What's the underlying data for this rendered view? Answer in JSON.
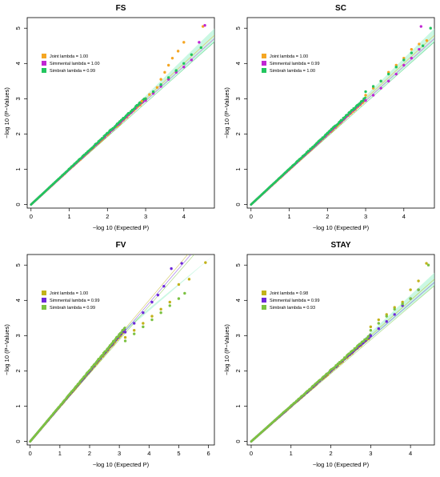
{
  "chart_data": [
    {
      "type": "scatter",
      "title": "FS",
      "xlabel": "−log 10 (Expected P)",
      "ylabel": "−log 10 (P−Values)",
      "xlim": [
        -0.1,
        4.8
      ],
      "ylim": [
        -0.1,
        5.3
      ],
      "xticks": [
        "0",
        "1",
        "2",
        "3",
        "4"
      ],
      "yticks": [
        "0",
        "1",
        "2",
        "3",
        "4",
        "5"
      ],
      "legend_position": "top-left",
      "series": [
        {
          "name": "Joint lambda = 1.00",
          "color": "#f5a623",
          "points": [
            [
              2.9,
              2.93
            ],
            [
              3.0,
              3.0
            ],
            [
              3.1,
              3.12
            ],
            [
              3.2,
              3.18
            ],
            [
              3.3,
              3.32
            ],
            [
              3.4,
              3.55
            ],
            [
              3.5,
              3.75
            ],
            [
              3.6,
              3.95
            ],
            [
              3.7,
              4.15
            ],
            [
              3.85,
              4.35
            ],
            [
              4.0,
              4.6
            ],
            [
              4.5,
              5.05
            ]
          ]
        },
        {
          "name": "Simmental lambda = 1.00",
          "color": "#c026d3",
          "points": [
            [
              3.0,
              2.95
            ],
            [
              3.2,
              3.15
            ],
            [
              3.4,
              3.35
            ],
            [
              3.6,
              3.55
            ],
            [
              3.8,
              3.75
            ],
            [
              4.0,
              3.9
            ],
            [
              4.2,
              4.1
            ],
            [
              4.4,
              4.6
            ],
            [
              4.55,
              5.08
            ]
          ]
        },
        {
          "name": "Simbrah lambda = 0.99",
          "color": "#22c55e",
          "points": [
            [
              3.0,
              3.0
            ],
            [
              3.2,
              3.2
            ],
            [
              3.4,
              3.4
            ],
            [
              3.6,
              3.6
            ],
            [
              3.8,
              3.8
            ],
            [
              4.0,
              4.0
            ],
            [
              4.2,
              4.25
            ],
            [
              4.45,
              4.45
            ]
          ]
        }
      ],
      "band_color": "#a7f3d0"
    },
    {
      "type": "scatter",
      "title": "SC",
      "xlabel": "−log 10 (Expected P)",
      "ylabel": "−log 10 (P−Values)",
      "xlim": [
        -0.1,
        4.8
      ],
      "ylim": [
        -0.1,
        5.3
      ],
      "xticks": [
        "0",
        "1",
        "2",
        "3",
        "4"
      ],
      "yticks": [
        "0",
        "1",
        "2",
        "3",
        "4",
        "5"
      ],
      "legend_position": "top-left",
      "series": [
        {
          "name": "Joint lambda = 1.00",
          "color": "#f5a623",
          "points": [
            [
              3.0,
              3.1
            ],
            [
              3.2,
              3.3
            ],
            [
              3.4,
              3.5
            ],
            [
              3.6,
              3.75
            ],
            [
              3.8,
              3.95
            ],
            [
              4.0,
              4.15
            ],
            [
              4.2,
              4.4
            ],
            [
              4.4,
              4.55
            ],
            [
              4.6,
              4.65
            ]
          ]
        },
        {
          "name": "Simmental lambda = 0.99",
          "color": "#c026d3",
          "points": [
            [
              3.0,
              2.95
            ],
            [
              3.2,
              3.1
            ],
            [
              3.4,
              3.3
            ],
            [
              3.6,
              3.5
            ],
            [
              3.8,
              3.7
            ],
            [
              4.0,
              3.95
            ],
            [
              4.2,
              4.15
            ],
            [
              4.4,
              4.4
            ],
            [
              4.45,
              5.05
            ]
          ]
        },
        {
          "name": "Simbrah lambda = 1.00",
          "color": "#22c55e",
          "points": [
            [
              3.0,
              3.2
            ],
            [
              3.2,
              3.35
            ],
            [
              3.4,
              3.5
            ],
            [
              3.6,
              3.7
            ],
            [
              3.8,
              3.9
            ],
            [
              4.0,
              4.1
            ],
            [
              4.2,
              4.3
            ],
            [
              4.5,
              4.5
            ],
            [
              4.7,
              5.0
            ]
          ]
        }
      ],
      "band_color": "#a7f3d0"
    },
    {
      "type": "scatter",
      "title": "FV",
      "xlabel": "−log 10 (Expected P)",
      "ylabel": "−log 10 (P−Values)",
      "xlim": [
        -0.1,
        6.2
      ],
      "ylim": [
        -0.1,
        5.3
      ],
      "xticks": [
        "0",
        "1",
        "2",
        "3",
        "4",
        "5",
        "6"
      ],
      "yticks": [
        "0",
        "1",
        "2",
        "3",
        "4",
        "5"
      ],
      "legend_position": "top-left",
      "series": [
        {
          "name": "Joint lambda = 1.00",
          "color": "#c2b21a",
          "points": [
            [
              3.2,
              2.95
            ],
            [
              3.5,
              3.15
            ],
            [
              3.8,
              3.35
            ],
            [
              4.1,
              3.55
            ],
            [
              4.4,
              3.75
            ],
            [
              4.7,
              3.95
            ],
            [
              5.0,
              4.45
            ],
            [
              5.35,
              4.6
            ],
            [
              5.9,
              5.07
            ]
          ]
        },
        {
          "name": "Simmental lambda = 0.99",
          "color": "#6d28d9",
          "points": [
            [
              3.2,
              3.1
            ],
            [
              3.5,
              3.35
            ],
            [
              3.8,
              3.65
            ],
            [
              4.1,
              3.95
            ],
            [
              4.3,
              4.15
            ],
            [
              4.5,
              4.4
            ],
            [
              4.75,
              4.9
            ],
            [
              5.1,
              5.05
            ]
          ]
        },
        {
          "name": "Simbrah lambda = 0.99",
          "color": "#7cc242",
          "points": [
            [
              3.2,
              2.85
            ],
            [
              3.5,
              3.05
            ],
            [
              3.8,
              3.25
            ],
            [
              4.1,
              3.45
            ],
            [
              4.4,
              3.65
            ],
            [
              4.7,
              3.85
            ],
            [
              5.0,
              4.05
            ],
            [
              5.2,
              4.2
            ]
          ]
        }
      ],
      "band_color": "#a7f3d0"
    },
    {
      "type": "scatter",
      "title": "STAY",
      "xlabel": "−log 10 (Expected P)",
      "ylabel": "−log 10 (P−Values)",
      "xlim": [
        -0.1,
        4.6
      ],
      "ylim": [
        -0.1,
        5.3
      ],
      "xticks": [
        "0",
        "1",
        "2",
        "3",
        "4"
      ],
      "yticks": [
        "0",
        "1",
        "2",
        "3",
        "4",
        "5"
      ],
      "legend_position": "top-left",
      "series": [
        {
          "name": "Joint lambda = 0.98",
          "color": "#c2b21a",
          "points": [
            [
              3.0,
              3.25
            ],
            [
              3.2,
              3.45
            ],
            [
              3.4,
              3.6
            ],
            [
              3.6,
              3.8
            ],
            [
              3.8,
              3.95
            ],
            [
              4.0,
              4.3
            ],
            [
              4.2,
              4.55
            ],
            [
              4.4,
              5.05
            ]
          ]
        },
        {
          "name": "Simmental lambda = 0.99",
          "color": "#6d28d9",
          "points": [
            [
              3.0,
              3.0
            ],
            [
              3.2,
              3.2
            ],
            [
              3.4,
              3.4
            ],
            [
              3.6,
              3.6
            ],
            [
              3.8,
              3.85
            ],
            [
              4.0,
              4.05
            ],
            [
              4.2,
              4.3
            ]
          ]
        },
        {
          "name": "Simbrah lambda = 0.93",
          "color": "#7cc242",
          "points": [
            [
              3.0,
              3.15
            ],
            [
              3.2,
              3.35
            ],
            [
              3.4,
              3.55
            ],
            [
              3.6,
              3.75
            ],
            [
              3.8,
              3.9
            ],
            [
              4.0,
              4.05
            ],
            [
              4.2,
              4.3
            ],
            [
              4.45,
              5.0
            ]
          ]
        }
      ],
      "band_color": "#a7f3d0"
    }
  ]
}
